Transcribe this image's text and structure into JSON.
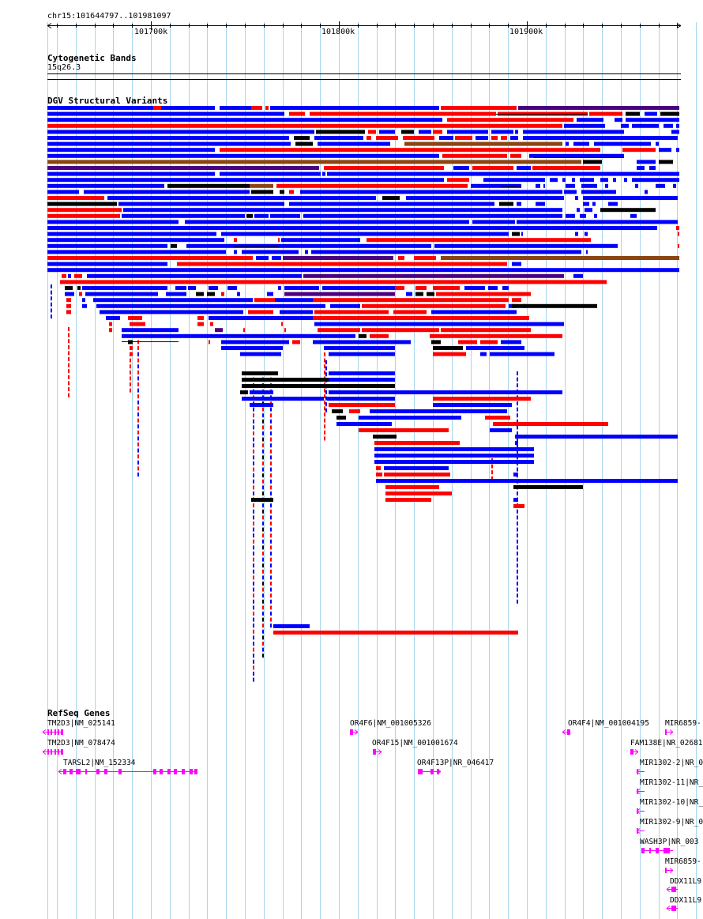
{
  "browser": {
    "region": "chr15:101644797..101981097",
    "ticks": [
      "101700k",
      "101800k",
      "101900k"
    ],
    "gridline_color": "#a6d6ee"
  },
  "tracks": {
    "cytoband": {
      "title": "Cytogenetic Bands",
      "band": "15q26.3"
    },
    "dgv": {
      "title": "DGV Structural Variants"
    },
    "refseq": {
      "title": "RefSeq Genes",
      "genes": [
        "TM2D3|NM_025141",
        "TM2D3|NM_078474",
        "TARSL2|NM_152334",
        "OR4F6|NM_001005326",
        "OR4F15|NM_001001674",
        "OR4F13P|NR_046417",
        "OR4F4|NM_001004195",
        "MIR6859-",
        "FAM138E|NR_02681",
        "MIR1302-2|NR_0",
        "MIR1302-11|NR_",
        "MIR1302-10|NR_",
        "MIR1302-9|NR_0",
        "WASH3P|NR_003",
        "MIR6859-",
        "DDX11L9",
        "DDX11L9"
      ]
    }
  },
  "colors": {
    "gain": "#0000ff",
    "loss": "#ff0000",
    "complex": "#000000",
    "inversion": "#8b4513",
    "gain_loss": "#4b0082",
    "gene": "#ff00ff"
  }
}
